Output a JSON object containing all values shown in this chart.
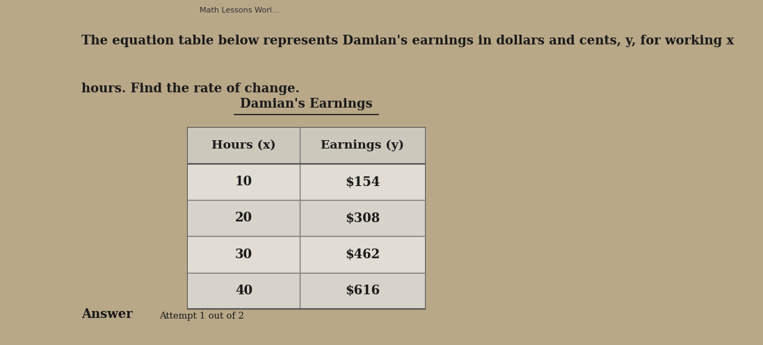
{
  "title": "Damian's Earnings",
  "description_line1": "The equation table below represents Damian's earnings in dollars and cents, y, for working x",
  "description_line2": "hours. Find the rate of change.",
  "col_headers": [
    "Hours (x)",
    "Earnings (y)"
  ],
  "rows": [
    [
      "10",
      "$154"
    ],
    [
      "20",
      "$308"
    ],
    [
      "30",
      "$462"
    ],
    [
      "40",
      "$616"
    ]
  ],
  "answer_label": "Answer",
  "attempt_label": "Attempt 1 out of 2",
  "text_color": "#1a1a1a",
  "tab_title_text": "Math Lessons Worl...",
  "figure_bg": "#b8a888"
}
